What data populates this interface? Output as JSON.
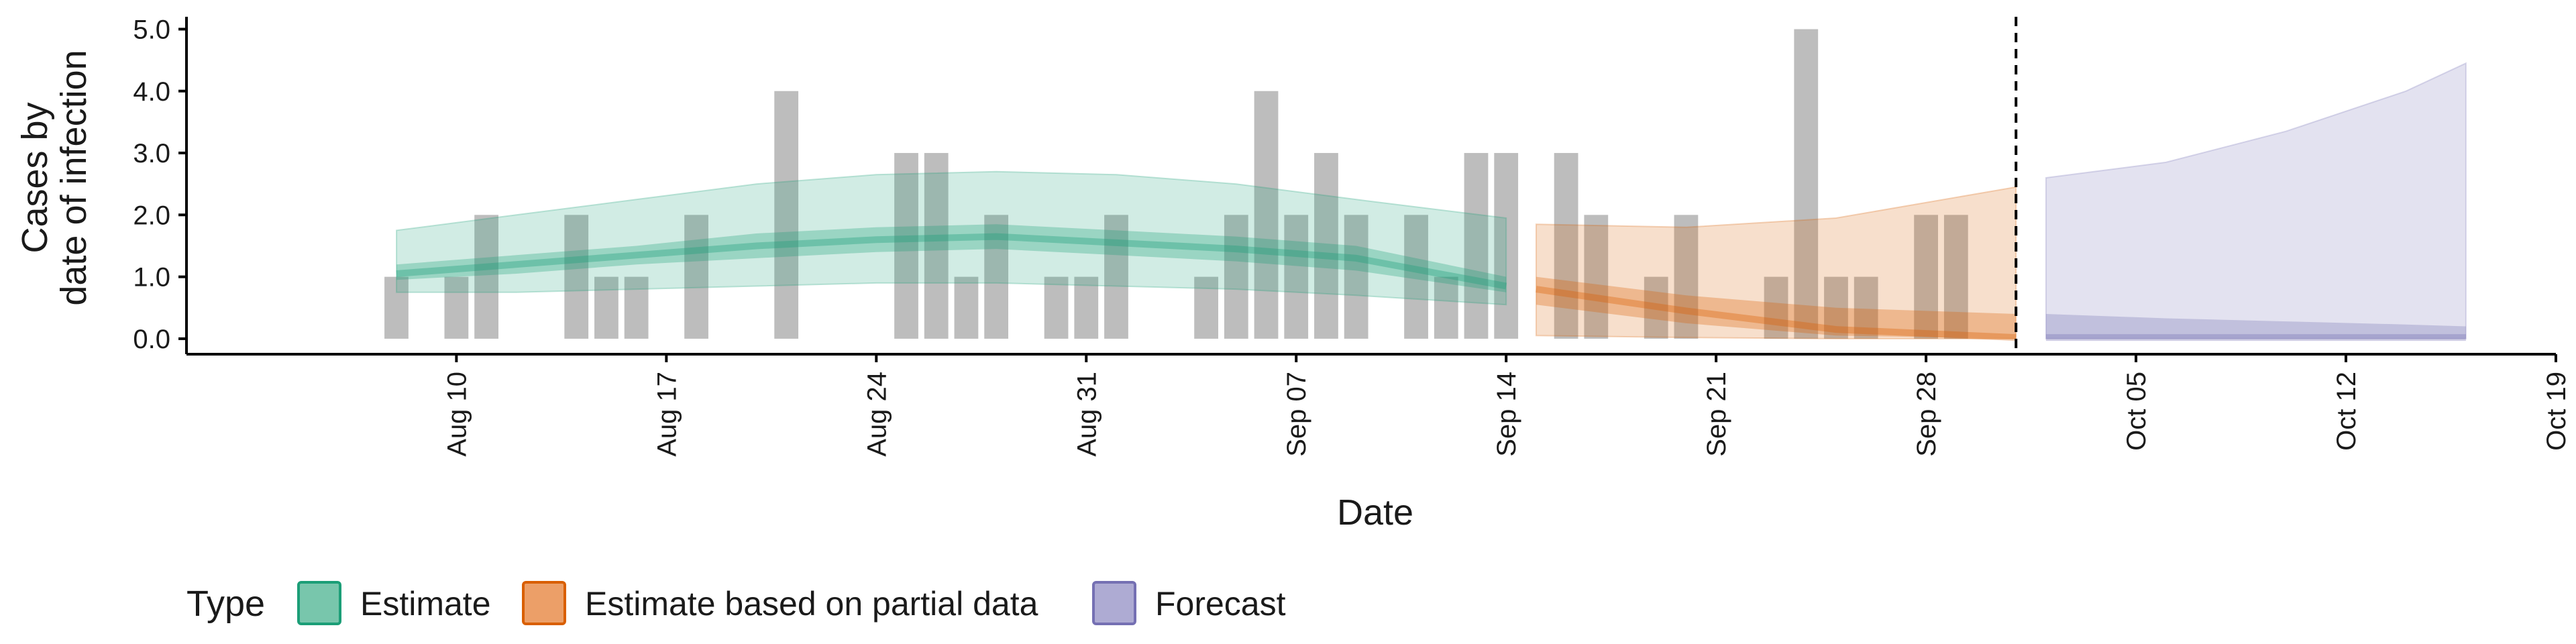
{
  "chart_data": {
    "type": "bar",
    "x_axis": {
      "label": "Date",
      "type": "date",
      "range": [
        "2020-08-01",
        "2020-10-19"
      ],
      "ticks": [
        {
          "date": "2020-08-10",
          "label": "Aug 10"
        },
        {
          "date": "2020-08-17",
          "label": "Aug 17"
        },
        {
          "date": "2020-08-24",
          "label": "Aug 24"
        },
        {
          "date": "2020-08-31",
          "label": "Aug 31"
        },
        {
          "date": "2020-09-07",
          "label": "Sep 07"
        },
        {
          "date": "2020-09-14",
          "label": "Sep 14"
        },
        {
          "date": "2020-09-21",
          "label": "Sep 21"
        },
        {
          "date": "2020-09-28",
          "label": "Sep 28"
        },
        {
          "date": "2020-10-05",
          "label": "Oct 05"
        },
        {
          "date": "2020-10-12",
          "label": "Oct 12"
        },
        {
          "date": "2020-10-19",
          "label": "Oct 19"
        }
      ]
    },
    "y_axis": {
      "label_lines": [
        "Cases by",
        "date of infection"
      ],
      "range": [
        -0.25,
        5.2
      ],
      "ticks": [
        "0.0",
        "1.0",
        "2.0",
        "3.0",
        "4.0",
        "5.0"
      ]
    },
    "forecast_cutoff": "2020-10-01",
    "observed_cases": [
      {
        "date": "2020-08-08",
        "value": 1
      },
      {
        "date": "2020-08-09",
        "value": 0
      },
      {
        "date": "2020-08-10",
        "value": 1
      },
      {
        "date": "2020-08-11",
        "value": 2
      },
      {
        "date": "2020-08-12",
        "value": 0
      },
      {
        "date": "2020-08-13",
        "value": 0
      },
      {
        "date": "2020-08-14",
        "value": 2
      },
      {
        "date": "2020-08-15",
        "value": 1
      },
      {
        "date": "2020-08-16",
        "value": 1
      },
      {
        "date": "2020-08-17",
        "value": 0
      },
      {
        "date": "2020-08-18",
        "value": 2
      },
      {
        "date": "2020-08-19",
        "value": 0
      },
      {
        "date": "2020-08-20",
        "value": 0
      },
      {
        "date": "2020-08-21",
        "value": 4
      },
      {
        "date": "2020-08-22",
        "value": 0
      },
      {
        "date": "2020-08-23",
        "value": 0
      },
      {
        "date": "2020-08-24",
        "value": 0
      },
      {
        "date": "2020-08-25",
        "value": 3
      },
      {
        "date": "2020-08-26",
        "value": 3
      },
      {
        "date": "2020-08-27",
        "value": 1
      },
      {
        "date": "2020-08-28",
        "value": 2
      },
      {
        "date": "2020-08-29",
        "value": 0
      },
      {
        "date": "2020-08-30",
        "value": 1
      },
      {
        "date": "2020-08-31",
        "value": 1
      },
      {
        "date": "2020-09-01",
        "value": 2
      },
      {
        "date": "2020-09-02",
        "value": 0
      },
      {
        "date": "2020-09-03",
        "value": 0
      },
      {
        "date": "2020-09-04",
        "value": 1
      },
      {
        "date": "2020-09-05",
        "value": 2
      },
      {
        "date": "2020-09-06",
        "value": 4
      },
      {
        "date": "2020-09-07",
        "value": 2
      },
      {
        "date": "2020-09-08",
        "value": 3
      },
      {
        "date": "2020-09-09",
        "value": 2
      },
      {
        "date": "2020-09-10",
        "value": 0
      },
      {
        "date": "2020-09-11",
        "value": 2
      },
      {
        "date": "2020-09-12",
        "value": 1
      },
      {
        "date": "2020-09-13",
        "value": 3
      },
      {
        "date": "2020-09-14",
        "value": 3
      },
      {
        "date": "2020-09-15",
        "value": 0
      },
      {
        "date": "2020-09-16",
        "value": 3
      },
      {
        "date": "2020-09-17",
        "value": 2
      },
      {
        "date": "2020-09-18",
        "value": 0
      },
      {
        "date": "2020-09-19",
        "value": 1
      },
      {
        "date": "2020-09-20",
        "value": 2
      },
      {
        "date": "2020-09-21",
        "value": 0
      },
      {
        "date": "2020-09-22",
        "value": 0
      },
      {
        "date": "2020-09-23",
        "value": 1
      },
      {
        "date": "2020-09-24",
        "value": 5
      },
      {
        "date": "2020-09-25",
        "value": 1
      },
      {
        "date": "2020-09-26",
        "value": 1
      },
      {
        "date": "2020-09-27",
        "value": 0
      },
      {
        "date": "2020-09-28",
        "value": 2
      },
      {
        "date": "2020-09-29",
        "value": 2
      }
    ],
    "estimate_series": [
      {
        "name": "Estimate",
        "color": "#1b9e77",
        "points": [
          {
            "date": "2020-08-08",
            "lo90": 0.75,
            "lo50": 0.95,
            "median": 1.05,
            "hi50": 1.2,
            "hi90": 1.75
          },
          {
            "date": "2020-08-12",
            "lo90": 0.75,
            "lo50": 1.05,
            "median": 1.2,
            "hi50": 1.35,
            "hi90": 2.0
          },
          {
            "date": "2020-08-16",
            "lo90": 0.8,
            "lo50": 1.2,
            "median": 1.35,
            "hi50": 1.5,
            "hi90": 2.25
          },
          {
            "date": "2020-08-20",
            "lo90": 0.85,
            "lo50": 1.3,
            "median": 1.5,
            "hi50": 1.7,
            "hi90": 2.5
          },
          {
            "date": "2020-08-24",
            "lo90": 0.9,
            "lo50": 1.4,
            "median": 1.6,
            "hi50": 1.8,
            "hi90": 2.65
          },
          {
            "date": "2020-08-28",
            "lo90": 0.9,
            "lo50": 1.45,
            "median": 1.65,
            "hi50": 1.85,
            "hi90": 2.7
          },
          {
            "date": "2020-09-01",
            "lo90": 0.85,
            "lo50": 1.35,
            "median": 1.55,
            "hi50": 1.75,
            "hi90": 2.65
          },
          {
            "date": "2020-09-05",
            "lo90": 0.8,
            "lo50": 1.25,
            "median": 1.45,
            "hi50": 1.65,
            "hi90": 2.5
          },
          {
            "date": "2020-09-09",
            "lo90": 0.7,
            "lo50": 1.1,
            "median": 1.3,
            "hi50": 1.5,
            "hi90": 2.25
          },
          {
            "date": "2020-09-14",
            "lo90": 0.55,
            "lo50": 0.75,
            "median": 0.85,
            "hi50": 1.0,
            "hi90": 1.95
          }
        ]
      },
      {
        "name": "Estimate based on partial data",
        "color": "#d95f02",
        "points": [
          {
            "date": "2020-09-15",
            "lo90": 0.05,
            "lo50": 0.55,
            "median": 0.8,
            "hi50": 1.0,
            "hi90": 1.85
          },
          {
            "date": "2020-09-20",
            "lo90": 0.02,
            "lo50": 0.25,
            "median": 0.45,
            "hi50": 0.7,
            "hi90": 1.8
          },
          {
            "date": "2020-09-25",
            "lo90": 0.0,
            "lo50": 0.05,
            "median": 0.15,
            "hi50": 0.5,
            "hi90": 1.95
          },
          {
            "date": "2020-10-01",
            "lo90": 0.0,
            "lo50": 0.0,
            "median": 0.02,
            "hi50": 0.4,
            "hi90": 2.45
          }
        ]
      },
      {
        "name": "Forecast",
        "color": "#7570b3",
        "points": [
          {
            "date": "2020-10-02",
            "lo90": 0.0,
            "lo50": 0.0,
            "median": 0.02,
            "hi50": 0.4,
            "hi90": 2.6
          },
          {
            "date": "2020-10-06",
            "lo90": 0.0,
            "lo50": 0.0,
            "median": 0.02,
            "hi50": 0.33,
            "hi90": 2.85
          },
          {
            "date": "2020-10-10",
            "lo90": 0.0,
            "lo50": 0.0,
            "median": 0.02,
            "hi50": 0.28,
            "hi90": 3.35
          },
          {
            "date": "2020-10-14",
            "lo90": 0.0,
            "lo50": 0.0,
            "median": 0.02,
            "hi50": 0.23,
            "hi90": 4.0
          },
          {
            "date": "2020-10-16",
            "lo90": 0.0,
            "lo50": 0.0,
            "median": 0.02,
            "hi50": 0.2,
            "hi90": 4.45
          }
        ]
      }
    ],
    "legend": {
      "title": "Type",
      "placement": "bottom-left",
      "items": [
        {
          "label": "Estimate",
          "color": "#1b9e77",
          "fill": "#78c6ac"
        },
        {
          "label": "Estimate based on partial data",
          "color": "#d95f02",
          "fill": "#ec9f68"
        },
        {
          "label": "Forecast",
          "color": "#7570b3",
          "fill": "#aeabd3"
        }
      ]
    },
    "bar_color": "#bdbdbd",
    "grid": false
  }
}
